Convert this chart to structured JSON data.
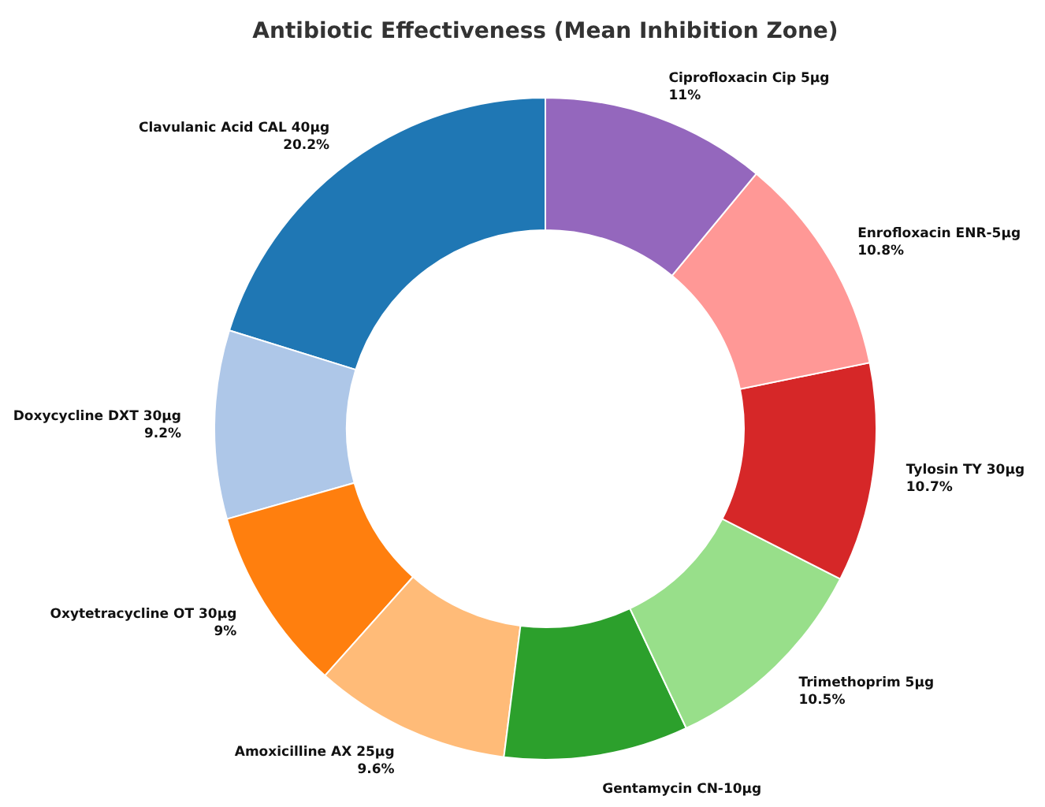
{
  "chart_data": {
    "type": "donut",
    "title": "Antibiotic Effectiveness (Mean Inhibition Zone)",
    "categories": [
      "Clavulanic Acid CAL 40µg",
      "Doxycycline DXT 30µg",
      "Oxytetracycline OT 30µg",
      "Amoxicilline AX 25µg",
      "Gentamycin CN-10µg",
      "Trimethoprim 5µg",
      "Tylosin TY 30µg",
      "Enrofloxacin ENR-5µg",
      "Ciprofloxacin Cip 5µg"
    ],
    "values": [
      20.2,
      9.2,
      9,
      9.6,
      9,
      10.5,
      10.7,
      10.8,
      11
    ],
    "value_labels": [
      "20.2%",
      "9.2%",
      "9%",
      "9.6%",
      null,
      "10.5%",
      "10.7%",
      "10.8%",
      "11%"
    ],
    "colors": [
      "#1f77b4",
      "#aec7e8",
      "#ff7f0e",
      "#ffbb78",
      "#2ca02c",
      "#98df8a",
      "#d62728",
      "#ff9896",
      "#9467bd"
    ]
  }
}
